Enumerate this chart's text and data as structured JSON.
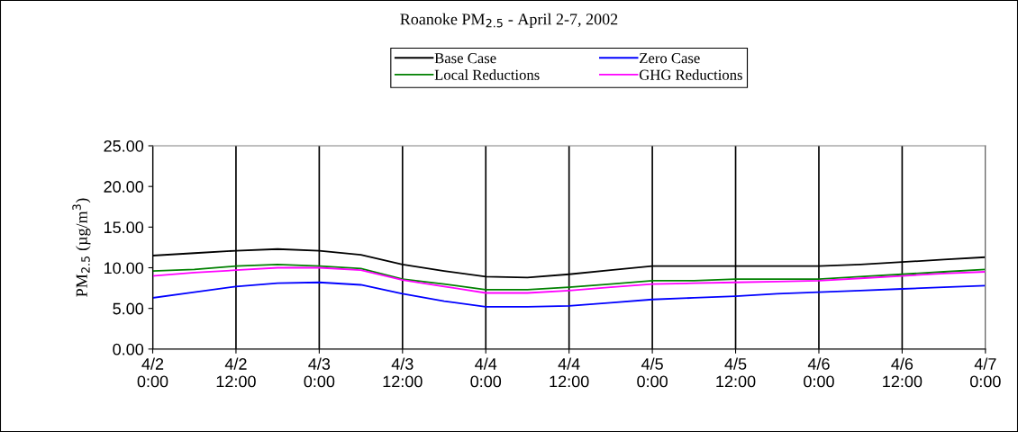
{
  "chart_data": {
    "type": "line",
    "title": "Roanoke PM$_{2.5}$ - April 2-7, 2002",
    "ylabel": "PM$_{2.5}$ (µg/m$^{3}$)",
    "categories": [
      "4/2\n0:00",
      null,
      "4/2\n12:00",
      null,
      "4/3\n0:00",
      null,
      "4/3\n12:00",
      null,
      "4/4\n0:00",
      null,
      "4/4\n12:00",
      null,
      "4/5\n0:00",
      null,
      "4/5\n12:00",
      null,
      "4/6\n0:00",
      null,
      "4/6\n12:00",
      null,
      "4/7\n0:00"
    ],
    "series": [
      {
        "name": "Base Case",
        "color": "#000000",
        "values": [
          11.5,
          11.8,
          12.1,
          12.3,
          12.1,
          11.6,
          10.4,
          9.6,
          8.9,
          8.8,
          9.2,
          9.7,
          10.2,
          10.2,
          10.2,
          10.2,
          10.2,
          10.4,
          10.7,
          11.0,
          11.3
        ]
      },
      {
        "name": "Zero Case",
        "color": "#0000ff",
        "values": [
          6.3,
          7.0,
          7.7,
          8.1,
          8.2,
          7.9,
          6.8,
          5.9,
          5.2,
          5.2,
          5.3,
          5.7,
          6.1,
          6.3,
          6.5,
          6.8,
          7.0,
          7.2,
          7.4,
          7.6,
          7.8
        ]
      },
      {
        "name": "Local Reductions",
        "color": "#008000",
        "values": [
          9.6,
          9.8,
          10.2,
          10.4,
          10.2,
          9.9,
          8.6,
          8.0,
          7.3,
          7.3,
          7.6,
          8.0,
          8.4,
          8.4,
          8.6,
          8.6,
          8.6,
          8.9,
          9.2,
          9.5,
          9.8
        ]
      },
      {
        "name": "GHG Reductions",
        "color": "#ff00ff",
        "values": [
          9.0,
          9.4,
          9.7,
          10.0,
          10.0,
          9.7,
          8.5,
          7.7,
          6.9,
          6.9,
          7.2,
          7.6,
          8.0,
          8.1,
          8.2,
          8.3,
          8.4,
          8.7,
          9.0,
          9.3,
          9.5
        ]
      }
    ],
    "ylim": [
      0,
      25
    ],
    "yticks": [
      {
        "value": 0,
        "label": "0.00"
      },
      {
        "value": 5,
        "label": "5.00"
      },
      {
        "value": 10,
        "label": "10.00"
      },
      {
        "value": 15,
        "label": "15.00"
      },
      {
        "value": 20,
        "label": "20.00"
      },
      {
        "value": 25,
        "label": "25.00"
      }
    ],
    "grid": "x",
    "legend": "top",
    "marker": "none",
    "line_style": "solid"
  }
}
